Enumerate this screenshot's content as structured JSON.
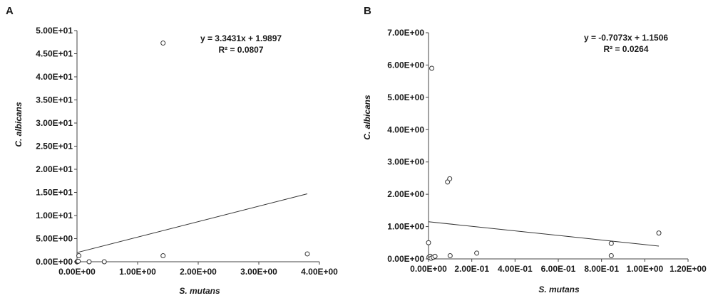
{
  "chart_data": [
    {
      "panel_label": "A",
      "type": "scatter",
      "xlabel": "S. mutans",
      "ylabel": "C. albicans",
      "xlim": [
        0,
        4
      ],
      "ylim": [
        0,
        50
      ],
      "x_ticks": [
        0,
        1,
        2,
        3,
        4
      ],
      "x_tick_labels": [
        "0.00E+00",
        "1.00E+00",
        "2.00E+00",
        "3.00E+00",
        "4.00E+00"
      ],
      "y_ticks": [
        0,
        5,
        10,
        15,
        20,
        25,
        30,
        35,
        40,
        45,
        50
      ],
      "y_tick_labels": [
        "0.00E+00",
        "5.00E+00",
        "1.00E+01",
        "1.50E+01",
        "2.00E+01",
        "2.50E+01",
        "3.00E+01",
        "3.50E+01",
        "4.00E+01",
        "4.50E+01",
        "5.00E+01"
      ],
      "points": [
        {
          "x": 0.0,
          "y": 0.0
        },
        {
          "x": 0.01,
          "y": 0.05
        },
        {
          "x": 0.02,
          "y": 0.1
        },
        {
          "x": 0.03,
          "y": 1.3
        },
        {
          "x": 0.2,
          "y": 0.0
        },
        {
          "x": 0.45,
          "y": 0.0
        },
        {
          "x": 1.42,
          "y": 47.3
        },
        {
          "x": 1.42,
          "y": 1.3
        },
        {
          "x": 3.8,
          "y": 1.7
        }
      ],
      "trendline": {
        "slope": 3.3431,
        "intercept": 1.9897,
        "x_range": [
          0,
          3.8
        ]
      },
      "equation": "y = 3.3431x + 1.9897",
      "r_squared": "R² = 0.0807",
      "grid": false
    },
    {
      "panel_label": "B",
      "type": "scatter",
      "xlabel": "S. mutans",
      "ylabel": "C. albicans",
      "xlim": [
        0,
        1.2
      ],
      "ylim": [
        0,
        7
      ],
      "x_ticks": [
        0,
        0.2,
        0.4,
        0.6,
        0.8,
        1.0,
        1.2
      ],
      "x_tick_labels": [
        "0.00E+00",
        "2.00E-01",
        "4.00E-01",
        "6.00E-01",
        "8.00E-01",
        "1.00E+00",
        "1.20E+00"
      ],
      "y_ticks": [
        0,
        1,
        2,
        3,
        4,
        5,
        6,
        7
      ],
      "y_tick_labels": [
        "0.00E+00",
        "1.00E+00",
        "2.00E+00",
        "3.00E+00",
        "4.00E+00",
        "5.00E+00",
        "6.00E+00",
        "7.00E+00"
      ],
      "points": [
        {
          "x": 0.0,
          "y": 0.5
        },
        {
          "x": 0.002,
          "y": 0.05
        },
        {
          "x": 0.008,
          "y": 0.08
        },
        {
          "x": 0.012,
          "y": 0.02
        },
        {
          "x": 0.015,
          "y": 5.9
        },
        {
          "x": 0.022,
          "y": 0.05
        },
        {
          "x": 0.03,
          "y": 0.08
        },
        {
          "x": 0.088,
          "y": 2.38
        },
        {
          "x": 0.098,
          "y": 2.48
        },
        {
          "x": 0.1,
          "y": 0.1
        },
        {
          "x": 0.223,
          "y": 0.18
        },
        {
          "x": 0.845,
          "y": 0.48
        },
        {
          "x": 0.845,
          "y": 0.1
        },
        {
          "x": 1.065,
          "y": 0.8
        }
      ],
      "trendline": {
        "slope": -0.7073,
        "intercept": 1.1506,
        "x_range": [
          0,
          1.065
        ]
      },
      "equation": "y = -0.7073x + 1.1506",
      "r_squared": "R² = 0.0264",
      "grid": false
    }
  ]
}
